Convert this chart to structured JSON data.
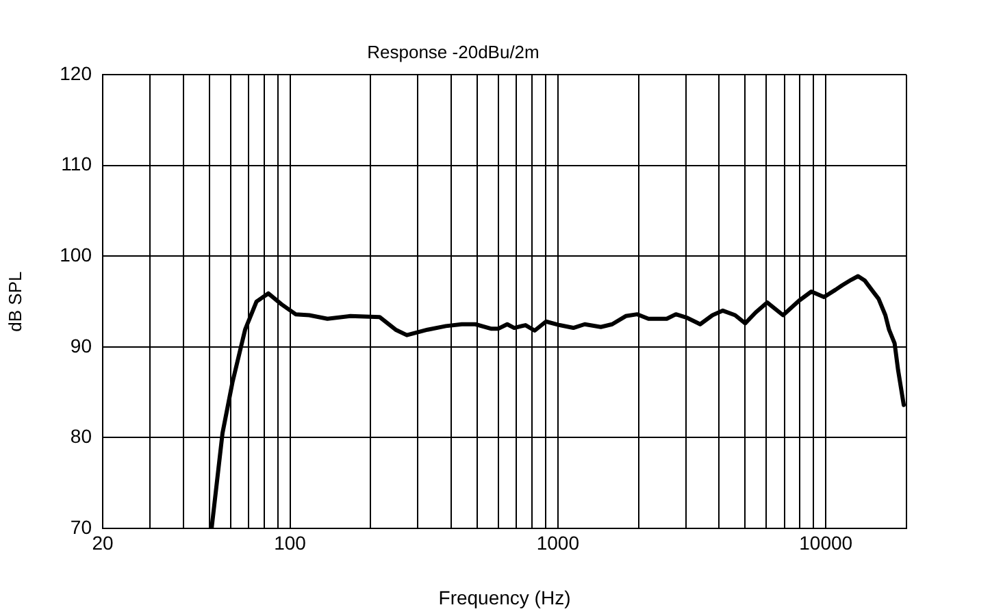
{
  "chart_data": {
    "type": "line",
    "title": "Response -20dBu/2m",
    "xlabel": "Frequency (Hz)",
    "ylabel": "dB SPL",
    "log": "x",
    "grid": true,
    "legend": false,
    "marker": "none",
    "line_style": "solid",
    "xlim": [
      20,
      20000
    ],
    "xticks": [
      20,
      {
        "value": 30,
        "label": null
      },
      {
        "value": 40,
        "label": null
      },
      {
        "value": 50,
        "label": null
      },
      {
        "value": 60,
        "label": null
      },
      {
        "value": 70,
        "label": null
      },
      {
        "value": 80,
        "label": null
      },
      {
        "value": 90,
        "label": null
      },
      100,
      {
        "value": 200,
        "label": null
      },
      {
        "value": 300,
        "label": null
      },
      {
        "value": 400,
        "label": null
      },
      {
        "value": 500,
        "label": null
      },
      {
        "value": 600,
        "label": null
      },
      {
        "value": 700,
        "label": null
      },
      {
        "value": 800,
        "label": null
      },
      {
        "value": 900,
        "label": null
      },
      1000,
      {
        "value": 2000,
        "label": null
      },
      {
        "value": 3000,
        "label": null
      },
      {
        "value": 4000,
        "label": null
      },
      {
        "value": 5000,
        "label": null
      },
      {
        "value": 6000,
        "label": null
      },
      {
        "value": 7000,
        "label": null
      },
      {
        "value": 8000,
        "label": null
      },
      {
        "value": 9000,
        "label": null
      },
      10000,
      {
        "value": 20000,
        "label": null
      }
    ],
    "ylim": [
      70,
      120
    ],
    "yticks": [
      70,
      80,
      90,
      100,
      110,
      120
    ],
    "series": [
      {
        "color": "#000000",
        "x": [
          51,
          56,
          61,
          68,
          75,
          83,
          93,
          105,
          118,
          138,
          168,
          216,
          248,
          273,
          326,
          382,
          438,
          492,
          565,
          598,
          647,
          687,
          757,
          819,
          903,
          1016,
          1142,
          1259,
          1446,
          1594,
          1792,
          1978,
          2178,
          2548,
          2757,
          3041,
          3396,
          3776,
          4127,
          4586,
          5002,
          5472,
          6040,
          6923,
          7947,
          8830,
          9846,
          10870,
          11515,
          12440,
          13190,
          13990,
          14830,
          15740,
          16680,
          17220,
          18060,
          18620,
          19540
        ],
        "values": [
          70,
          80.5,
          86.1,
          91.9,
          95,
          95.9,
          94.7,
          93.6,
          93.5,
          93.1,
          93.4,
          93.3,
          91.9,
          91.3,
          91.9,
          92.3,
          92.5,
          92.5,
          92,
          92,
          92.5,
          92.1,
          92.4,
          91.8,
          92.8,
          92.4,
          92.1,
          92.5,
          92.2,
          92.5,
          93.4,
          93.6,
          93.1,
          93.1,
          93.6,
          93.2,
          92.5,
          93.5,
          94,
          93.5,
          92.6,
          93.8,
          94.9,
          93.5,
          95.1,
          96.1,
          95.5,
          96.3,
          96.8,
          97.4,
          97.8,
          97.3,
          96.3,
          95.3,
          93.5,
          91.9,
          90.4,
          87.4,
          83.6
        ]
      }
    ]
  }
}
